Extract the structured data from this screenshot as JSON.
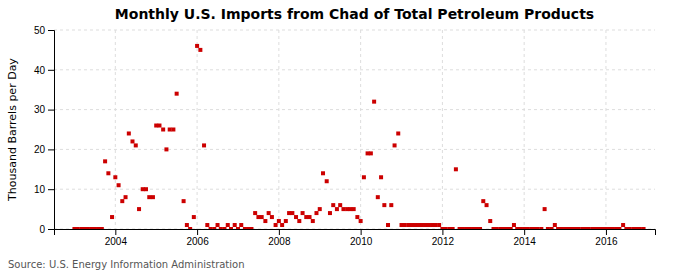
{
  "chart_data": {
    "type": "scatter",
    "title": "Monthly U.S. Imports from Chad of Total Petroleum Products",
    "ylabel": "Thousand Barrels per Day",
    "annotations": [
      "Source: U.S. Energy Information Administration"
    ],
    "color": "#cc0000",
    "marker": "square",
    "grid": true,
    "xlim": [
      2002.5,
      2017.2
    ],
    "ylim": [
      0,
      50
    ],
    "xticks": [
      2004,
      2006,
      2008,
      2010,
      2012,
      2014,
      2016
    ],
    "yticks": [
      0,
      10,
      20,
      30,
      40,
      50
    ],
    "x": [
      2003.0,
      2003.08,
      2003.17,
      2003.25,
      2003.33,
      2003.42,
      2003.5,
      2003.58,
      2003.67,
      2003.75,
      2003.83,
      2003.92,
      2004.0,
      2004.08,
      2004.17,
      2004.25,
      2004.33,
      2004.42,
      2004.5,
      2004.58,
      2004.67,
      2004.75,
      2004.83,
      2004.92,
      2005.0,
      2005.08,
      2005.17,
      2005.25,
      2005.33,
      2005.42,
      2005.5,
      2005.67,
      2005.75,
      2005.83,
      2005.92,
      2006.0,
      2006.08,
      2006.17,
      2006.25,
      2006.33,
      2006.42,
      2006.5,
      2006.58,
      2006.67,
      2006.75,
      2006.83,
      2006.92,
      2007.0,
      2007.08,
      2007.17,
      2007.25,
      2007.33,
      2007.42,
      2007.5,
      2007.58,
      2007.67,
      2007.75,
      2007.83,
      2007.92,
      2008.0,
      2008.08,
      2008.17,
      2008.25,
      2008.33,
      2008.42,
      2008.5,
      2008.58,
      2008.67,
      2008.75,
      2008.83,
      2008.92,
      2009.0,
      2009.08,
      2009.17,
      2009.25,
      2009.33,
      2009.42,
      2009.5,
      2009.58,
      2009.67,
      2009.75,
      2009.83,
      2009.92,
      2010.0,
      2010.08,
      2010.17,
      2010.25,
      2010.33,
      2010.42,
      2010.5,
      2010.58,
      2010.67,
      2010.75,
      2010.83,
      2010.92,
      2011.0,
      2011.08,
      2011.17,
      2011.25,
      2011.33,
      2011.42,
      2011.5,
      2011.58,
      2011.67,
      2011.75,
      2011.83,
      2011.92,
      2012.0,
      2012.08,
      2012.17,
      2012.25,
      2012.33,
      2012.42,
      2012.5,
      2012.58,
      2012.67,
      2012.75,
      2012.83,
      2012.92,
      2013.0,
      2013.08,
      2013.17,
      2013.25,
      2013.33,
      2013.42,
      2013.5,
      2013.58,
      2013.67,
      2013.75,
      2013.83,
      2013.92,
      2014.0,
      2014.08,
      2014.17,
      2014.25,
      2014.33,
      2014.42,
      2014.5,
      2014.58,
      2014.67,
      2014.75,
      2014.83,
      2014.92,
      2015.0,
      2015.08,
      2015.17,
      2015.25,
      2015.33,
      2015.42,
      2015.5,
      2015.58,
      2015.67,
      2015.75,
      2015.83,
      2015.92,
      2016.0,
      2016.08,
      2016.17,
      2016.25,
      2016.33,
      2016.42,
      2016.5,
      2016.58,
      2016.67,
      2016.75,
      2016.83,
      2016.92
    ],
    "values": [
      0,
      0,
      0,
      0,
      0,
      0,
      0,
      0,
      0,
      17,
      14,
      3,
      13,
      11,
      7,
      8,
      24,
      22,
      21,
      5,
      10,
      10,
      8,
      8,
      26,
      26,
      25,
      20,
      25,
      25,
      34,
      7,
      1,
      0,
      3,
      46,
      45,
      21,
      1,
      0,
      0,
      1,
      0,
      0,
      1,
      0,
      1,
      0,
      1,
      0,
      0,
      0,
      4,
      3,
      3,
      2,
      4,
      3,
      1,
      2,
      1,
      2,
      4,
      4,
      3,
      2,
      4,
      3,
      3,
      2,
      4,
      5,
      14,
      12,
      4,
      6,
      5,
      6,
      5,
      5,
      5,
      5,
      3,
      2,
      13,
      19,
      19,
      32,
      8,
      13,
      6,
      1,
      6,
      21,
      24,
      1,
      1,
      1,
      1,
      1,
      1,
      1,
      1,
      1,
      1,
      1,
      1,
      0,
      0,
      0,
      0,
      15,
      0,
      0,
      0,
      0,
      0,
      0,
      0,
      7,
      6,
      2,
      0,
      0,
      0,
      0,
      0,
      0,
      1,
      0,
      0,
      0,
      0,
      0,
      0,
      0,
      0,
      5,
      0,
      0,
      1,
      0,
      0,
      0,
      0,
      0,
      0,
      0,
      0,
      0,
      0,
      0,
      0,
      0,
      0,
      0,
      0,
      0,
      0,
      0,
      1,
      0,
      0,
      0,
      0,
      0,
      0
    ]
  }
}
